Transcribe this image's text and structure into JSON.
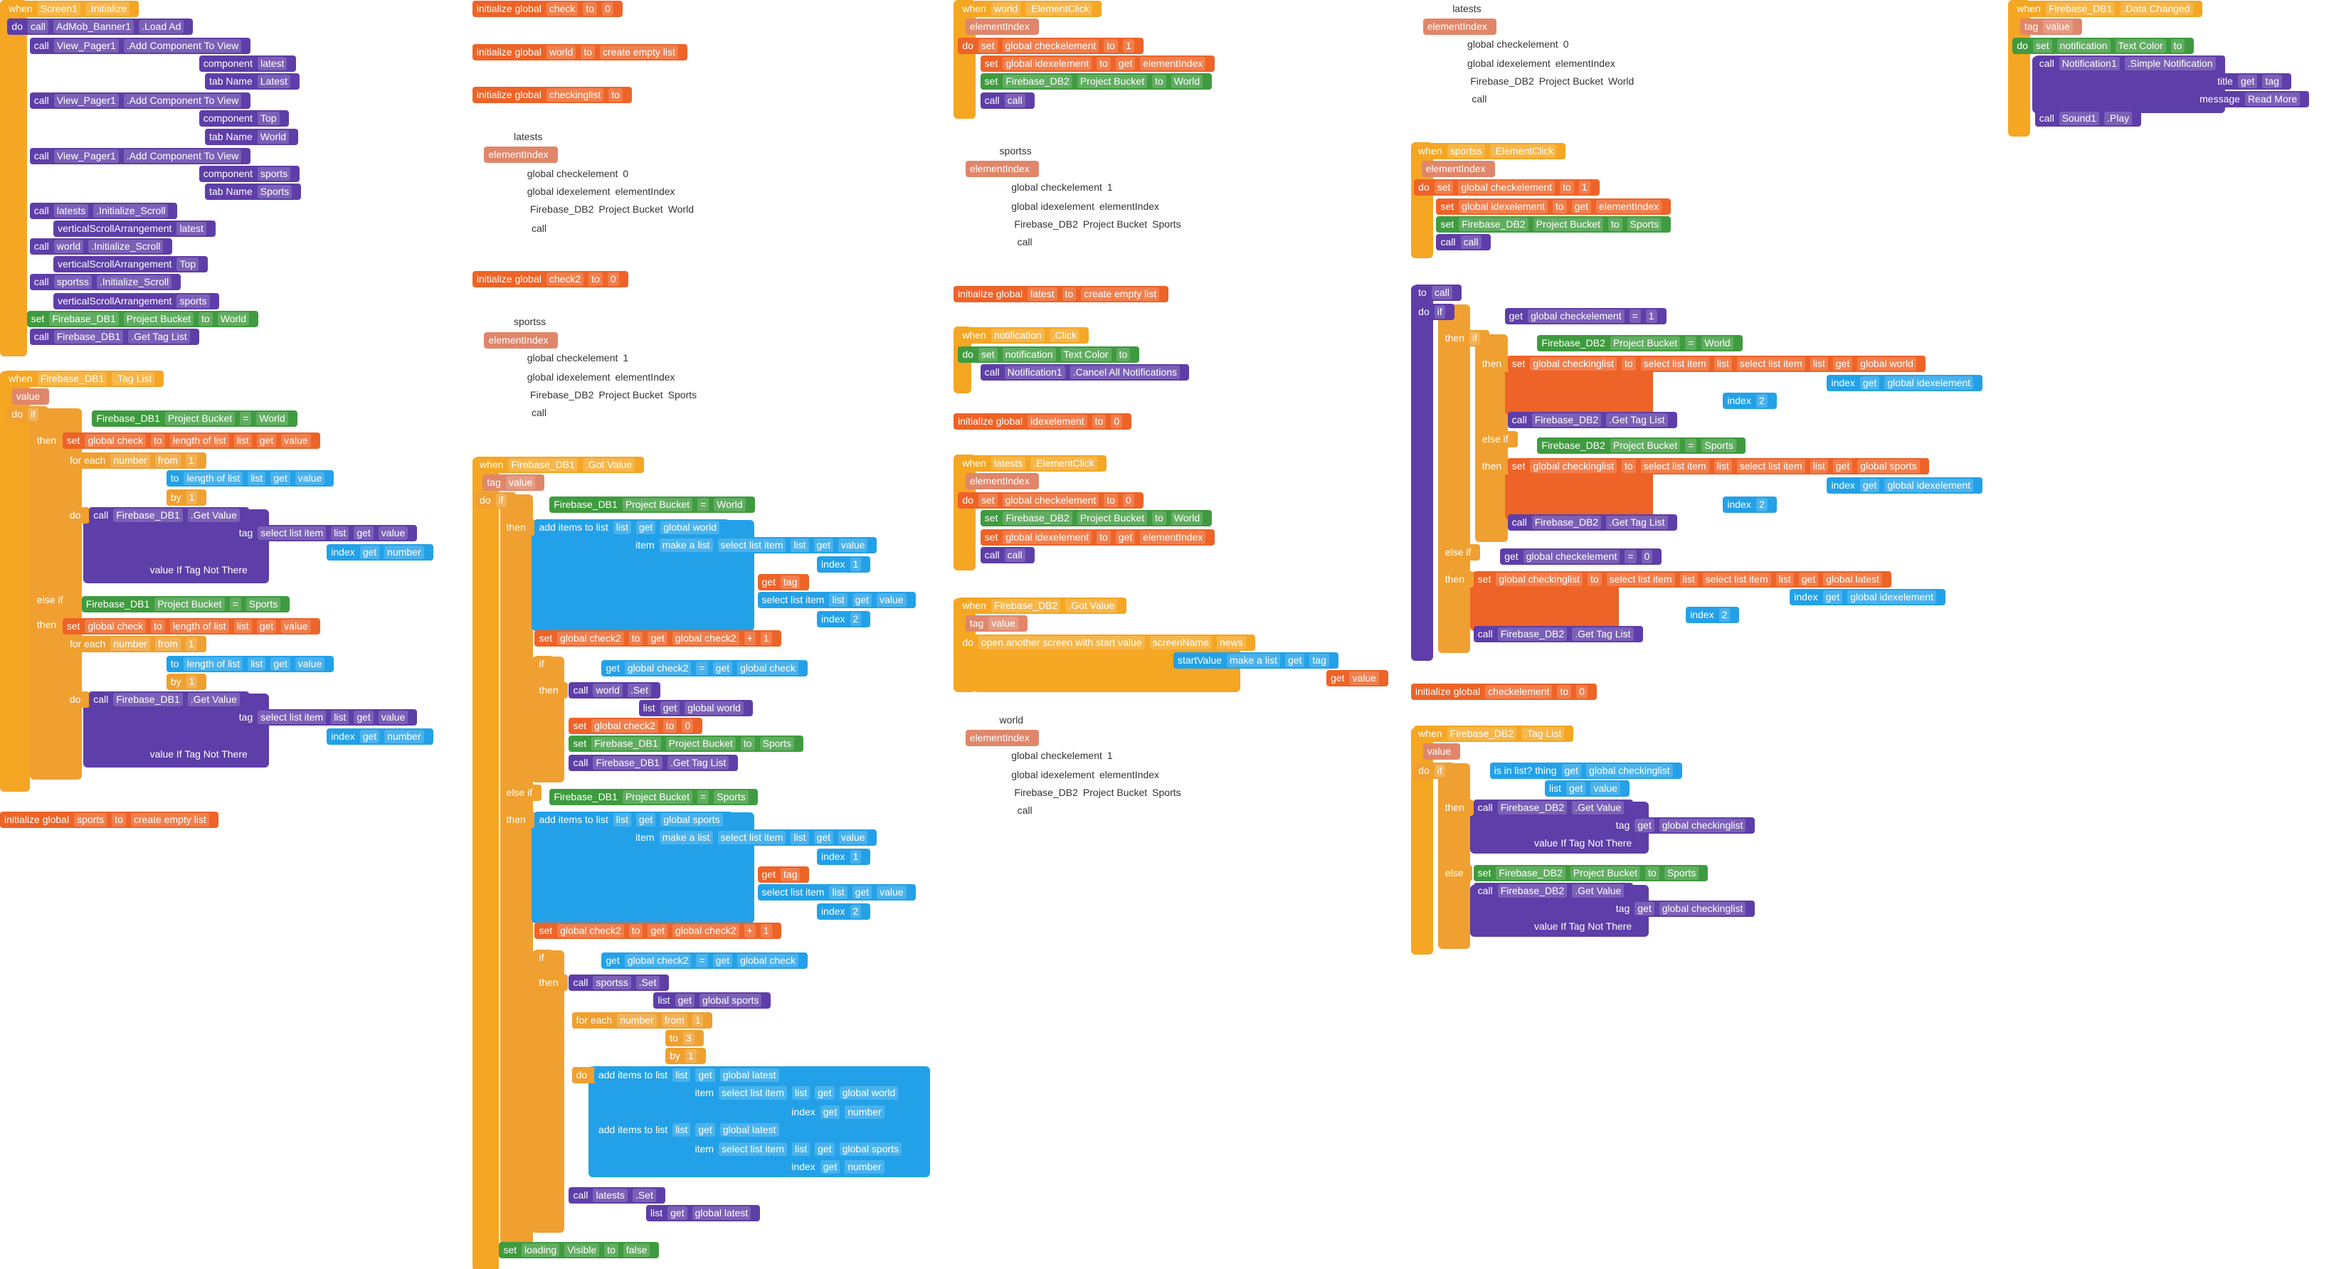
{
  "groups": [
    {
      "lines": [
        [
          "when",
          "Screen1",
          ".Initialize"
        ],
        [
          "do",
          "call",
          "AdMob_Banner1",
          ".Load Ad"
        ],
        [
          "call",
          "View_Pager1",
          ".Add Component To View"
        ],
        [
          "component",
          "latest"
        ],
        [
          "tab Name",
          "Latest"
        ],
        [
          "call",
          "View_Pager1",
          ".Add Component To View"
        ],
        [
          "component",
          "Top"
        ],
        [
          "tab Name",
          "World"
        ],
        [
          "call",
          "View_Pager1",
          ".Add Component To View"
        ],
        [
          "component",
          "sports"
        ],
        [
          "tab Name",
          "Sports"
        ],
        [
          "call",
          "latests",
          ".Initialize_Scroll"
        ],
        [
          "verticalScrollArrangement",
          "latest"
        ],
        [
          "call",
          "world",
          ".Initialize_Scroll"
        ],
        [
          "verticalScrollArrangement",
          "Top"
        ],
        [
          "call",
          "sportss",
          ".Initialize_Scroll"
        ],
        [
          "verticalScrollArrangement",
          "sports"
        ],
        [
          "set",
          "Firebase_DB1",
          "Project Bucket",
          "to",
          "World"
        ],
        [
          "call",
          "Firebase_DB1",
          ".Get Tag List"
        ]
      ]
    },
    {
      "lines": [
        [
          "when",
          "Firebase_DB1",
          ".Tag List"
        ],
        [
          "value"
        ],
        [
          "do",
          "if"
        ],
        [
          "Firebase_DB1",
          "Project Bucket",
          "=",
          "World"
        ],
        [
          "then"
        ],
        [
          "set",
          "global check",
          "to",
          "length of list",
          "list",
          "get",
          "value"
        ],
        [
          "for each",
          "number",
          "from",
          "1"
        ],
        [
          "to",
          "length of list",
          "list",
          "get",
          "value"
        ],
        [
          "by",
          "1"
        ],
        [
          "do"
        ],
        [
          "call",
          "Firebase_DB1",
          ".Get Value"
        ],
        [
          "tag",
          "select list item",
          "list",
          "get",
          "value"
        ],
        [
          "index",
          "get",
          "number"
        ],
        [
          "value If Tag Not There"
        ],
        [
          "else if"
        ],
        [
          "Firebase_DB1",
          "Project Bucket",
          "=",
          "Sports"
        ],
        [
          "then"
        ],
        [
          "set",
          "global check",
          "to",
          "length of list",
          "list",
          "get",
          "value"
        ],
        [
          "for each",
          "number",
          "from",
          "1"
        ],
        [
          "to",
          "length of list",
          "list",
          "get",
          "value"
        ],
        [
          "by",
          "1"
        ],
        [
          "do"
        ],
        [
          "call",
          "Firebase_DB1",
          ".Get Value"
        ],
        [
          "tag",
          "select list item",
          "list",
          "get",
          "value"
        ],
        [
          "index",
          "get",
          "number"
        ],
        [
          "value If Tag Not There"
        ]
      ]
    },
    {
      "lines": [
        [
          "initialize global",
          "sports",
          "to",
          "create empty list"
        ]
      ]
    },
    {
      "lines": [
        [
          "initialize global",
          "check",
          "to",
          "0"
        ]
      ]
    },
    {
      "lines": [
        [
          "initialize global",
          "world",
          "to",
          "create empty list"
        ]
      ]
    },
    {
      "lines": [
        [
          "initialize global",
          "checkinglist",
          "to"
        ]
      ]
    },
    {
      "lines": [
        [
          "latests"
        ],
        [
          "elementIndex"
        ],
        [
          "global checkelement",
          "0"
        ],
        [
          "global idexelement",
          "elementIndex"
        ],
        [
          "Firebase_DB2",
          "Project Bucket",
          "World"
        ],
        [
          "call"
        ]
      ]
    },
    {
      "lines": [
        [
          "initialize global",
          "check2",
          "to",
          "0"
        ]
      ]
    },
    {
      "lines": [
        [
          "sportss"
        ],
        [
          "elementIndex"
        ],
        [
          "global checkelement",
          "1"
        ],
        [
          "global idexelement",
          "elementIndex"
        ],
        [
          "Firebase_DB2",
          "Project Bucket",
          "Sports"
        ],
        [
          "call"
        ]
      ]
    },
    {
      "lines": [
        [
          "when",
          "Firebase_DB1",
          ".Got Value"
        ],
        [
          "tag",
          "value"
        ],
        [
          "do",
          "if"
        ],
        [
          "Firebase_DB1",
          "Project Bucket",
          "=",
          "World"
        ],
        [
          "then"
        ],
        [
          "add items to list",
          "list",
          "get",
          "global world"
        ],
        [
          "item",
          "make a list",
          "select list item",
          "list",
          "get",
          "value"
        ],
        [
          "index",
          "1"
        ],
        [
          "get",
          "tag"
        ],
        [
          "select list item",
          "list",
          "get",
          "value"
        ],
        [
          "index",
          "2"
        ],
        [
          "set",
          "global check2",
          "to",
          "get",
          "global check2",
          "+",
          "1"
        ],
        [
          "if"
        ],
        [
          "get",
          "global check2",
          "=",
          "get",
          "global check"
        ],
        [
          "then"
        ],
        [
          "call",
          "world",
          ".Set"
        ],
        [
          "list",
          "get",
          "global world"
        ],
        [
          "set",
          "global check2",
          "to",
          "0"
        ],
        [
          "set",
          "Firebase_DB1",
          "Project Bucket",
          "to",
          "Sports"
        ],
        [
          "call",
          "Firebase_DB1",
          ".Get Tag List"
        ],
        [
          "else if"
        ],
        [
          "Firebase_DB1",
          "Project Bucket",
          "=",
          "Sports"
        ],
        [
          "then"
        ],
        [
          "add items to list",
          "list",
          "get",
          "global sports"
        ],
        [
          "item",
          "make a list",
          "select list item",
          "list",
          "get",
          "value"
        ],
        [
          "index",
          "1"
        ],
        [
          "get",
          "tag"
        ],
        [
          "select list item",
          "list",
          "get",
          "value"
        ],
        [
          "index",
          "2"
        ],
        [
          "set",
          "global check2",
          "to",
          "get",
          "global check2",
          "+",
          "1"
        ],
        [
          "if"
        ],
        [
          "get",
          "global check2",
          "=",
          "get",
          "global check"
        ],
        [
          "then"
        ],
        [
          "call",
          "sportss",
          ".Set"
        ],
        [
          "list",
          "get",
          "global sports"
        ],
        [
          "for each",
          "number",
          "from",
          "1"
        ],
        [
          "to",
          "3"
        ],
        [
          "by",
          "1"
        ],
        [
          "do"
        ],
        [
          "add items to list",
          "list",
          "get",
          "global latest"
        ],
        [
          "item",
          "select list item",
          "list",
          "get",
          "global world"
        ],
        [
          "index",
          "get",
          "number"
        ],
        [
          "add items to list",
          "list",
          "get",
          "global latest"
        ],
        [
          "item",
          "select list item",
          "list",
          "get",
          "global sports"
        ],
        [
          "index",
          "get",
          "number"
        ],
        [
          "call",
          "latests",
          ".Set"
        ],
        [
          "list",
          "get",
          "global latest"
        ],
        [
          "set",
          "loading",
          "Visible",
          "to",
          "false"
        ]
      ]
    },
    {
      "lines": [
        [
          "when",
          "world",
          ".ElementClick"
        ],
        [
          "elementIndex"
        ],
        [
          "do",
          "set",
          "global checkelement",
          "to",
          "1"
        ],
        [
          "set",
          "global idexelement",
          "to",
          "get",
          "elementIndex"
        ],
        [
          "set",
          "Firebase_DB2",
          "Project Bucket",
          "to",
          "World"
        ],
        [
          "call",
          "call"
        ]
      ]
    },
    {
      "lines": [
        [
          "sportss"
        ],
        [
          "elementIndex"
        ],
        [
          "global checkelement",
          "1"
        ],
        [
          "global idexelement",
          "elementIndex"
        ],
        [
          "Firebase_DB2",
          "Project Bucket",
          "Sports"
        ],
        [
          "call"
        ]
      ]
    },
    {
      "lines": [
        [
          "initialize global",
          "latest",
          "to",
          "create empty list"
        ]
      ]
    },
    {
      "lines": [
        [
          "when",
          "notification",
          ".Click"
        ],
        [
          "do",
          "set",
          "notification",
          "Text Color",
          "to"
        ],
        [
          "call",
          "Notification1",
          ".Cancel All Notifications"
        ]
      ]
    },
    {
      "lines": [
        [
          "initialize global",
          "idexelement",
          "to",
          "0"
        ]
      ]
    },
    {
      "lines": [
        [
          "when",
          "latests",
          ".ElementClick"
        ],
        [
          "elementIndex"
        ],
        [
          "do",
          "set",
          "global checkelement",
          "to",
          "0"
        ],
        [
          "set",
          "Firebase_DB2",
          "Project Bucket",
          "to",
          "World"
        ],
        [
          "set",
          "global idexelement",
          "to",
          "get",
          "elementIndex"
        ],
        [
          "call",
          "call"
        ]
      ]
    },
    {
      "lines": [
        [
          "when",
          "Firebase_DB2",
          ".Got Value"
        ],
        [
          "tag",
          "value"
        ],
        [
          "do",
          "open another screen with start value",
          "screenName",
          "news"
        ],
        [
          "startValue",
          "make a list",
          "get",
          "tag"
        ],
        [
          "get",
          "value"
        ]
      ]
    },
    {
      "lines": [
        [
          "world"
        ],
        [
          "elementIndex"
        ],
        [
          "global checkelement",
          "1"
        ],
        [
          "global idexelement",
          "elementIndex"
        ],
        [
          "Firebase_DB2",
          "Project Bucket",
          "Sports"
        ],
        [
          "call"
        ]
      ]
    },
    {
      "lines": [
        [
          "latests"
        ],
        [
          "elementIndex"
        ],
        [
          "global checkelement",
          "0"
        ],
        [
          "global idexelement",
          "elementIndex"
        ],
        [
          "Firebase_DB2",
          "Project Bucket",
          "World"
        ],
        [
          "call"
        ]
      ]
    },
    {
      "lines": [
        [
          "when",
          "sportss",
          ".ElementClick"
        ],
        [
          "elementIndex"
        ],
        [
          "do",
          "set",
          "global checkelement",
          "to",
          "1"
        ],
        [
          "set",
          "global idexelement",
          "to",
          "get",
          "elementIndex"
        ],
        [
          "set",
          "Firebase_DB2",
          "Project Bucket",
          "to",
          "Sports"
        ],
        [
          "call",
          "call"
        ]
      ]
    },
    {
      "lines": [
        [
          "to",
          "call"
        ],
        [
          "do",
          "if"
        ],
        [
          "get",
          "global checkelement",
          "=",
          "1"
        ],
        [
          "then",
          "if"
        ],
        [
          "Firebase_DB2",
          "Project Bucket",
          "=",
          "World"
        ],
        [
          "then"
        ],
        [
          "set",
          "global checkinglist",
          "to",
          "select list item",
          "list",
          "select list item",
          "list",
          "get",
          "global world"
        ],
        [
          "index",
          "get",
          "global idexelement"
        ],
        [
          "index",
          "2"
        ],
        [
          "call",
          "Firebase_DB2",
          ".Get Tag List"
        ],
        [
          "else if"
        ],
        [
          "Firebase_DB2",
          "Project Bucket",
          "=",
          "Sports"
        ],
        [
          "then"
        ],
        [
          "set",
          "global checkinglist",
          "to",
          "select list item",
          "list",
          "select list item",
          "list",
          "get",
          "global sports"
        ],
        [
          "index",
          "get",
          "global idexelement"
        ],
        [
          "index",
          "2"
        ],
        [
          "call",
          "Firebase_DB2",
          ".Get Tag List"
        ],
        [
          "else if"
        ],
        [
          "get",
          "global checkelement",
          "=",
          "0"
        ],
        [
          "then"
        ],
        [
          "set",
          "global checkinglist",
          "to",
          "select list item",
          "list",
          "select list item",
          "list",
          "get",
          "global latest"
        ],
        [
          "index",
          "get",
          "global idexelement"
        ],
        [
          "index",
          "2"
        ],
        [
          "call",
          "Firebase_DB2",
          ".Get Tag List"
        ]
      ]
    },
    {
      "lines": [
        [
          "initialize global",
          "checkelement",
          "to",
          "0"
        ]
      ]
    },
    {
      "lines": [
        [
          "when",
          "Firebase_DB2",
          ".Tag List"
        ],
        [
          "value"
        ],
        [
          "do",
          "if"
        ],
        [
          "is in list? thing",
          "get",
          "global checkinglist"
        ],
        [
          "list",
          "get",
          "value"
        ],
        [
          "then"
        ],
        [
          "call",
          "Firebase_DB2",
          ".Get Value"
        ],
        [
          "tag",
          "get",
          "global checkinglist"
        ],
        [
          "value If Tag Not There"
        ],
        [
          "else"
        ],
        [
          "set",
          "Firebase_DB2",
          "Project Bucket",
          "to",
          "Sports"
        ],
        [
          "call",
          "Firebase_DB2",
          ".Get Value"
        ],
        [
          "tag",
          "get",
          "global checkinglist"
        ],
        [
          "value If Tag Not There"
        ]
      ]
    },
    {
      "lines": [
        [
          "when",
          "Firebase_DB1",
          ".Data Changed"
        ],
        [
          "tag",
          "value"
        ],
        [
          "do",
          "set",
          "notification",
          "Text Color",
          "to"
        ],
        [
          "call",
          "Notification1",
          ".Simple Notification"
        ],
        [
          "title",
          "get",
          "tag"
        ],
        [
          "message",
          "Read More"
        ],
        [
          "call",
          "Sound1",
          ".Play"
        ]
      ]
    }
  ]
}
